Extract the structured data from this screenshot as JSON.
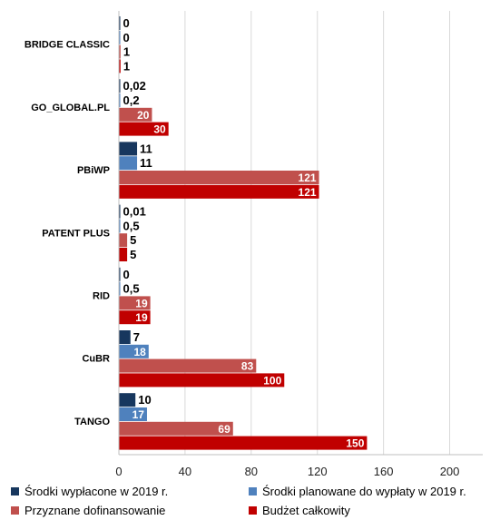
{
  "chart_data": {
    "type": "bar",
    "orientation": "horizontal",
    "categories": [
      "BRIDGE CLASSIC",
      "GO_GLOBAL.PL",
      "PBiWP",
      "PATENT PLUS",
      "RID",
      "CuBR",
      "TANGO"
    ],
    "series": [
      {
        "name": "Środki wypłacone w 2019 r.",
        "color": "#17375e",
        "values": [
          0,
          0.02,
          11,
          0.01,
          0,
          7,
          10
        ],
        "labels": [
          "0",
          "0,02",
          "11",
          "0,01",
          "0",
          "7",
          "10"
        ]
      },
      {
        "name": "Środki planowane do wypłaty w 2019 r.",
        "color": "#4f81bd",
        "values": [
          0,
          0.2,
          11,
          0.5,
          0.5,
          18,
          17
        ],
        "labels": [
          "0",
          "0,2",
          "11",
          "0,5",
          "0,5",
          "18",
          "17"
        ]
      },
      {
        "name": "Przyznane dofinansowanie",
        "color": "#c0504d",
        "values": [
          1,
          20,
          121,
          5,
          19,
          83,
          69
        ],
        "labels": [
          "1",
          "20",
          "121",
          "5",
          "19",
          "83",
          "69"
        ]
      },
      {
        "name": "Budżet całkowity",
        "color": "#c00000",
        "values": [
          1,
          30,
          121,
          5,
          19,
          100,
          150
        ],
        "labels": [
          "1",
          "30",
          "121",
          "5",
          "19",
          "100",
          "150"
        ]
      }
    ],
    "xlim": [
      0,
      220
    ],
    "xticks": [
      0,
      40,
      80,
      120,
      160,
      200
    ],
    "xtick_labels": [
      "0",
      "40",
      "80",
      "120",
      "160",
      "200"
    ],
    "grid": "vertical",
    "legend": "bottom",
    "title": "",
    "xlabel": "",
    "ylabel": ""
  }
}
